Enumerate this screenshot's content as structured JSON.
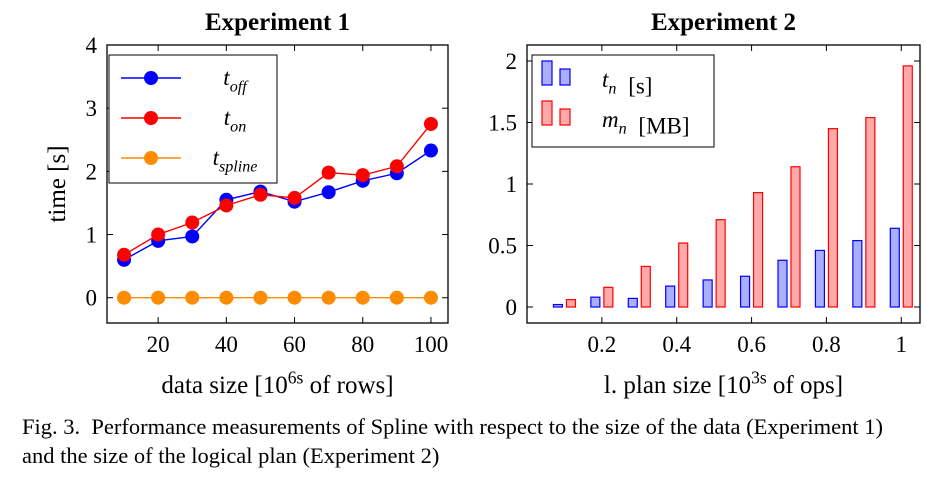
{
  "figure": {
    "caption_label": "Fig. 3.",
    "caption_text": "Performance measurements of Spline with respect to the size of the data (Experiment 1) and the size of the logical plan (Experiment 2)"
  },
  "chart_data": [
    {
      "type": "line",
      "title": "Experiment 1",
      "xlabel": "data size [10^6s of rows]",
      "ylabel": "time [s]",
      "xlim": [
        5,
        105
      ],
      "ylim": [
        -0.4,
        4
      ],
      "xticks": [
        20,
        40,
        60,
        80,
        100
      ],
      "yticks": [
        0,
        1,
        2,
        3,
        4
      ],
      "grid": false,
      "legend_position": "top-left",
      "x": [
        10,
        20,
        30,
        40,
        50,
        60,
        70,
        80,
        90,
        100
      ],
      "series": [
        {
          "name": "t_off",
          "color": "#0000ff",
          "values": [
            0.6,
            0.9,
            0.97,
            1.55,
            1.68,
            1.52,
            1.67,
            1.85,
            1.97,
            2.33
          ]
        },
        {
          "name": "t_on",
          "color": "#ff0000",
          "values": [
            0.68,
            1.0,
            1.19,
            1.46,
            1.63,
            1.58,
            1.98,
            1.94,
            2.08,
            2.75
          ]
        },
        {
          "name": "t_spline",
          "color": "#ff8c00",
          "values": [
            0,
            0,
            0,
            0,
            0,
            0,
            0,
            0,
            0,
            0
          ]
        }
      ]
    },
    {
      "type": "bar",
      "title": "Experiment 2",
      "xlabel": "l. plan size [10^3s of ops]",
      "ylabel": "",
      "xlim": [
        0.0,
        1.05
      ],
      "ylim": [
        -0.13,
        2.13
      ],
      "xticks": [
        0.2,
        0.4,
        0.6,
        0.8,
        1
      ],
      "yticks": [
        0,
        0.5,
        1,
        1.5,
        2
      ],
      "grid": false,
      "legend_position": "top-left",
      "x": [
        0.1,
        0.2,
        0.3,
        0.4,
        0.5,
        0.6,
        0.7,
        0.8,
        0.9,
        1.0
      ],
      "series": [
        {
          "name": "t_n [s]",
          "color": "#aab0ff",
          "stroke": "#0000ff",
          "values": [
            0.02,
            0.08,
            0.07,
            0.17,
            0.22,
            0.25,
            0.38,
            0.46,
            0.54,
            0.64
          ]
        },
        {
          "name": "m_n [MB]",
          "color": "#ffaaaa",
          "stroke": "#ff0000",
          "values": [
            0.06,
            0.16,
            0.33,
            0.52,
            0.71,
            0.93,
            1.14,
            1.45,
            1.54,
            1.96
          ]
        }
      ]
    }
  ]
}
